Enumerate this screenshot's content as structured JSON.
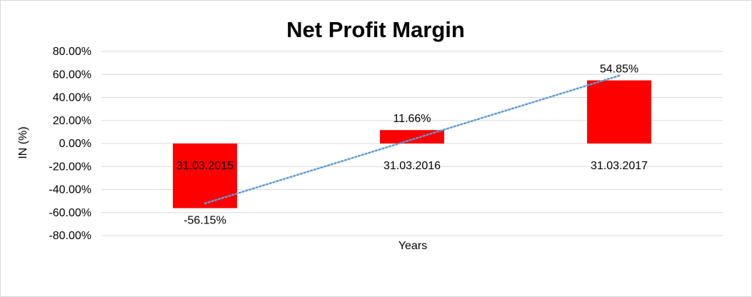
{
  "chart_data": {
    "type": "bar",
    "title": "Net Profit Margin",
    "xlabel": "Years",
    "ylabel": "IN (%)",
    "categories": [
      "31.03.2015",
      "31.03.2016",
      "31.03.2017"
    ],
    "series": [
      {
        "values": [
          -56.15,
          11.66,
          54.85
        ],
        "color": "#ff0000"
      }
    ],
    "data_labels": [
      "-56.15%",
      "11.66%",
      "54.85%"
    ],
    "ylim": [
      -80,
      80
    ],
    "yticks": [
      80,
      60,
      40,
      20,
      0,
      -20,
      -40,
      -60,
      -80
    ],
    "ytick_labels": [
      "80.00%",
      "60.00%",
      "40.00%",
      "20.00%",
      "0.00%",
      "-20.00%",
      "-40.00%",
      "-60.00%",
      "-80.00%"
    ],
    "grid": true,
    "trendline": {
      "type": "linear",
      "style": "dotted",
      "color": "#5b9bd5"
    },
    "legend": "none"
  }
}
